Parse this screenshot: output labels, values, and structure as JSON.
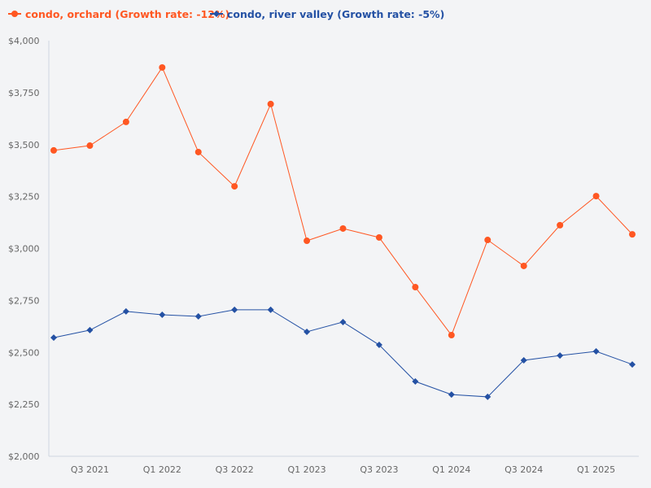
{
  "chart_data": {
    "type": "line",
    "title": "",
    "xlabel": "",
    "ylabel": "",
    "ylim": [
      2000,
      4000
    ],
    "yticks": [
      "$2,000",
      "$2,250",
      "$2,500",
      "$2,750",
      "$3,000",
      "$3,250",
      "$3,500",
      "$3,750",
      "$4,000"
    ],
    "ytick_values": [
      2000,
      2250,
      2500,
      2750,
      3000,
      3250,
      3500,
      3750,
      4000
    ],
    "x": [
      "Q2 2021",
      "Q3 2021",
      "Q4 2021",
      "Q1 2022",
      "Q2 2022",
      "Q3 2022",
      "Q4 2022",
      "Q1 2023",
      "Q2 2023",
      "Q3 2023",
      "Q4 2023",
      "Q1 2024",
      "Q2 2024",
      "Q3 2024",
      "Q4 2024",
      "Q1 2025",
      "Q2 2025"
    ],
    "xtick_labels": [
      "Q3 2021",
      "Q1 2022",
      "Q3 2022",
      "Q1 2023",
      "Q3 2023",
      "Q1 2024",
      "Q3 2024",
      "Q1 2025"
    ],
    "grid": false,
    "legend_placement": "top-left",
    "series": [
      {
        "name": "condo, orchard (Growth rate: -12%)",
        "color": "#ff5722",
        "marker": "circle",
        "values": [
          3472,
          3495,
          3609,
          3871,
          3464,
          3299,
          3695,
          3037,
          3096,
          3053,
          2814,
          2583,
          3041,
          2916,
          3112,
          3252,
          3068
        ]
      },
      {
        "name": "condo, river valley (Growth rate: -5%)",
        "color": "#2451a4",
        "marker": "diamond",
        "values": [
          2571,
          2607,
          2697,
          2681,
          2673,
          2705,
          2705,
          2599,
          2646,
          2536,
          2360,
          2297,
          2286,
          2462,
          2485,
          2505,
          2442
        ]
      }
    ]
  }
}
